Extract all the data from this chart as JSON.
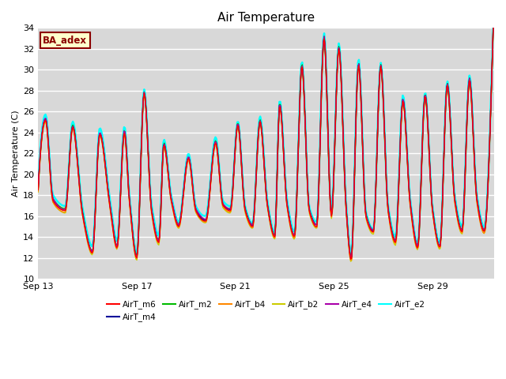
{
  "title": "Air Temperature",
  "ylabel": "Air Temperature (C)",
  "xlabel": "",
  "ylim": [
    10,
    34
  ],
  "yticks": [
    10,
    12,
    14,
    16,
    18,
    20,
    22,
    24,
    26,
    28,
    30,
    32,
    34
  ],
  "background_color": "#d8d8d8",
  "annotation_text": "BA_adex",
  "annotation_bg": "#ffffcc",
  "annotation_border": "#8b0000",
  "annotation_text_color": "#8b0000",
  "series_colors": {
    "AirT_m6": "#ff0000",
    "AirT_m4": "#000099",
    "AirT_m2": "#00bb00",
    "AirT_b4": "#ff8800",
    "AirT_b2": "#cccc00",
    "AirT_e4": "#aa00aa",
    "AirT_e2": "#00ffff"
  },
  "xtick_labels": [
    "Sep 13",
    "Sep 17",
    "Sep 21",
    "Sep 25",
    "Sep 29"
  ],
  "xtick_days": [
    0,
    4,
    8,
    12,
    16
  ],
  "total_days": 18.5,
  "n_points": 500,
  "peaks_valleys": {
    "times": [
      0.0,
      0.3,
      0.6,
      1.1,
      1.4,
      1.8,
      2.2,
      2.5,
      2.9,
      3.2,
      3.5,
      3.7,
      4.0,
      4.3,
      4.6,
      4.9,
      5.1,
      5.4,
      5.7,
      6.1,
      6.4,
      6.8,
      7.2,
      7.5,
      7.8,
      8.1,
      8.4,
      8.7,
      9.0,
      9.3,
      9.6,
      9.8,
      10.1,
      10.4,
      10.7,
      11.0,
      11.3,
      11.6,
      11.9,
      12.2,
      12.5,
      12.7,
      13.0,
      13.3,
      13.6,
      13.9,
      14.2,
      14.5,
      14.8,
      15.1,
      15.4,
      15.7,
      16.0,
      16.3,
      16.6,
      16.9,
      17.2,
      17.5,
      17.8,
      18.1,
      18.4
    ],
    "values": [
      18.5,
      25.2,
      17.5,
      16.5,
      24.5,
      16.2,
      12.5,
      23.8,
      17.2,
      13.0,
      24.0,
      17.5,
      12.0,
      27.7,
      16.5,
      13.5,
      22.8,
      17.5,
      15.0,
      21.5,
      16.5,
      15.5,
      23.0,
      17.0,
      16.5,
      24.7,
      16.5,
      15.0,
      25.0,
      17.0,
      14.0,
      26.6,
      17.0,
      14.0,
      30.3,
      16.5,
      15.0,
      33.0,
      16.0,
      32.0,
      16.5,
      11.8,
      30.5,
      16.0,
      14.5,
      30.3,
      16.5,
      13.5,
      27.0,
      17.0,
      13.0,
      27.5,
      16.5,
      13.0,
      28.5,
      17.5,
      14.5,
      29.0,
      17.5,
      14.5,
      29.0
    ]
  }
}
